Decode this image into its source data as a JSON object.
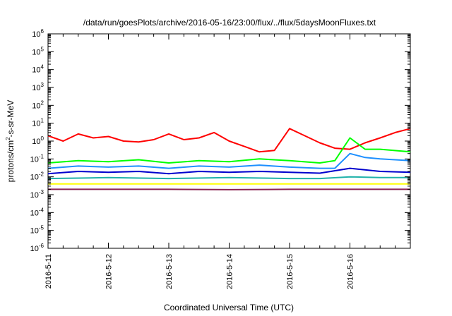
{
  "chart_data": {
    "type": "line",
    "title": "/data/run/goesPlots/archive/2016-05-16/23:00/flux/../flux/5daysMoonFluxes.txt",
    "xlabel": "Coordinated Universal Time (UTC)",
    "ylabel_parts": [
      "protons/cm",
      "2",
      "-s-sr-MeV"
    ],
    "y_scale": "log",
    "ylim": [
      1e-06,
      1000000.0
    ],
    "y_ticks": [
      {
        "value": 1e-06,
        "base": "10",
        "exp": "-6"
      },
      {
        "value": 1e-05,
        "base": "10",
        "exp": "-5"
      },
      {
        "value": 0.0001,
        "base": "10",
        "exp": "-4"
      },
      {
        "value": 0.001,
        "base": "10",
        "exp": "-3"
      },
      {
        "value": 0.01,
        "base": "10",
        "exp": "-2"
      },
      {
        "value": 0.1,
        "base": "10",
        "exp": "-1"
      },
      {
        "value": 1,
        "base": "10",
        "exp": "0"
      },
      {
        "value": 10,
        "base": "10",
        "exp": "1"
      },
      {
        "value": 100,
        "base": "10",
        "exp": "2"
      },
      {
        "value": 1000,
        "base": "10",
        "exp": "3"
      },
      {
        "value": 10000,
        "base": "10",
        "exp": "4"
      },
      {
        "value": 100000,
        "base": "10",
        "exp": "5"
      },
      {
        "value": 1000000,
        "base": "10",
        "exp": "6"
      }
    ],
    "x_range": [
      "2016-05-11",
      "2016-05-17"
    ],
    "x_ticks": [
      {
        "date": "2016-05-11",
        "label": "2016-5-11"
      },
      {
        "date": "2016-05-12",
        "label": "2016-5-12"
      },
      {
        "date": "2016-05-13",
        "label": "2016-5-13"
      },
      {
        "date": "2016-05-14",
        "label": "2016-5-14"
      },
      {
        "date": "2016-05-15",
        "label": "2016-5-15"
      },
      {
        "date": "2016-05-16",
        "label": "2016-5-16"
      }
    ],
    "grid": false,
    "legend": "none",
    "series": [
      {
        "color": "#ff0000",
        "x": [
          "2016-05-11 00:00",
          "2016-05-11 06:00",
          "2016-05-11 12:00",
          "2016-05-11 18:00",
          "2016-05-12 00:00",
          "2016-05-12 06:00",
          "2016-05-12 12:00",
          "2016-05-12 18:00",
          "2016-05-13 00:00",
          "2016-05-13 06:00",
          "2016-05-13 12:00",
          "2016-05-13 18:00",
          "2016-05-14 00:00",
          "2016-05-14 06:00",
          "2016-05-14 12:00",
          "2016-05-14 18:00",
          "2016-05-15 00:00",
          "2016-05-15 06:00",
          "2016-05-15 12:00",
          "2016-05-15 18:00",
          "2016-05-16 00:00",
          "2016-05-16 06:00",
          "2016-05-16 12:00",
          "2016-05-16 18:00",
          "2016-05-17 00:00"
        ],
        "values": [
          2.0,
          1.0,
          2.5,
          1.5,
          1.8,
          1.0,
          0.9,
          1.2,
          2.5,
          1.2,
          1.5,
          3.0,
          1.0,
          0.5,
          0.25,
          0.3,
          5.0,
          2.0,
          0.8,
          0.4,
          0.35,
          0.8,
          1.5,
          3.0,
          5.0
        ]
      },
      {
        "color": "#00ff00",
        "x": [
          "2016-05-11 00:00",
          "2016-05-11 12:00",
          "2016-05-12 00:00",
          "2016-05-12 12:00",
          "2016-05-13 00:00",
          "2016-05-13 12:00",
          "2016-05-14 00:00",
          "2016-05-14 12:00",
          "2016-05-15 00:00",
          "2016-05-15 12:00",
          "2016-05-15 18:00",
          "2016-05-16 00:00",
          "2016-05-16 06:00",
          "2016-05-16 12:00",
          "2016-05-17 00:00"
        ],
        "values": [
          0.06,
          0.08,
          0.07,
          0.09,
          0.06,
          0.08,
          0.07,
          0.1,
          0.08,
          0.06,
          0.08,
          1.5,
          0.35,
          0.35,
          0.25
        ]
      },
      {
        "color": "#1e90ff",
        "x": [
          "2016-05-11 00:00",
          "2016-05-11 12:00",
          "2016-05-12 00:00",
          "2016-05-12 12:00",
          "2016-05-13 00:00",
          "2016-05-13 12:00",
          "2016-05-14 00:00",
          "2016-05-14 12:00",
          "2016-05-15 00:00",
          "2016-05-15 12:00",
          "2016-05-15 18:00",
          "2016-05-16 00:00",
          "2016-05-16 06:00",
          "2016-05-16 12:00",
          "2016-05-17 00:00"
        ],
        "values": [
          0.03,
          0.04,
          0.035,
          0.04,
          0.03,
          0.04,
          0.035,
          0.045,
          0.035,
          0.03,
          0.03,
          0.2,
          0.12,
          0.1,
          0.08
        ]
      },
      {
        "color": "#0000cd",
        "x": [
          "2016-05-11 00:00",
          "2016-05-11 12:00",
          "2016-05-12 00:00",
          "2016-05-12 12:00",
          "2016-05-13 00:00",
          "2016-05-13 12:00",
          "2016-05-14 00:00",
          "2016-05-14 12:00",
          "2016-05-15 00:00",
          "2016-05-15 12:00",
          "2016-05-16 00:00",
          "2016-05-16 12:00",
          "2016-05-17 00:00"
        ],
        "values": [
          0.015,
          0.02,
          0.018,
          0.02,
          0.015,
          0.02,
          0.018,
          0.02,
          0.018,
          0.016,
          0.03,
          0.02,
          0.018
        ]
      },
      {
        "color": "#20b2aa",
        "x": [
          "2016-05-11 00:00",
          "2016-05-12 00:00",
          "2016-05-13 00:00",
          "2016-05-14 00:00",
          "2016-05-15 00:00",
          "2016-05-15 12:00",
          "2016-05-16 00:00",
          "2016-05-16 12:00",
          "2016-05-17 00:00"
        ],
        "values": [
          0.008,
          0.009,
          0.008,
          0.009,
          0.008,
          0.008,
          0.01,
          0.009,
          0.009
        ]
      },
      {
        "color": "#ffff00",
        "x": [
          "2016-05-11 00:00",
          "2016-05-17 00:00"
        ],
        "values": [
          0.004,
          0.004
        ]
      },
      {
        "color": "#8b2252",
        "x": [
          "2016-05-11 00:00",
          "2016-05-12 00:00",
          "2016-05-13 00:00",
          "2016-05-14 00:00",
          "2016-05-15 00:00",
          "2016-05-16 00:00",
          "2016-05-17 00:00"
        ],
        "values": [
          0.002,
          0.002,
          0.002,
          0.0019,
          0.002,
          0.002,
          0.002
        ]
      }
    ]
  }
}
